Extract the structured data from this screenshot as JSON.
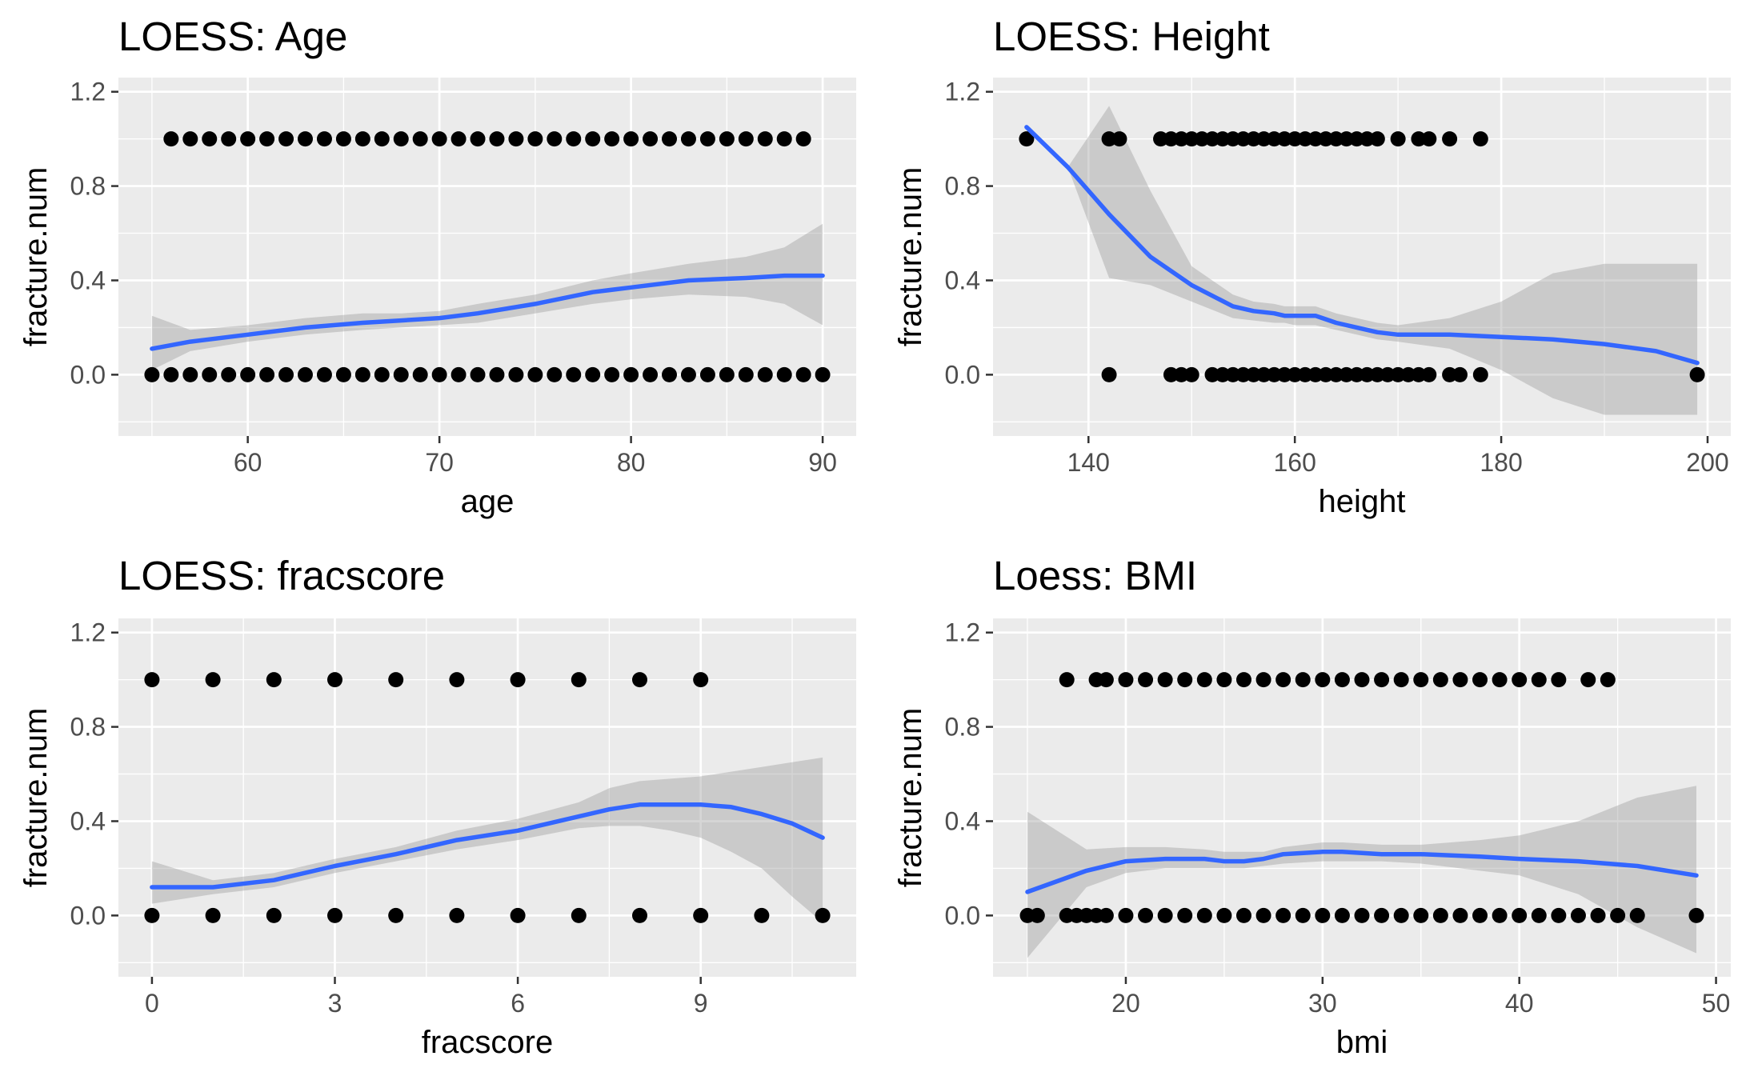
{
  "chart_data": [
    {
      "type": "scatter",
      "title": "LOESS: Age",
      "xlabel": "age",
      "ylabel": "fracture.num",
      "xlim": [
        53.25,
        91.75
      ],
      "ylim": [
        -0.26,
        1.26
      ],
      "xticks": [
        60,
        70,
        80,
        90
      ],
      "yticks": [
        0.0,
        0.4,
        0.8,
        1.2
      ],
      "ytick_labels": [
        "0.0",
        "0.4",
        "0.8",
        "1.2"
      ],
      "points": [
        {
          "x_values": [
            56,
            57,
            58,
            59,
            60,
            61,
            62,
            63,
            64,
            65,
            66,
            67,
            68,
            69,
            70,
            71,
            72,
            73,
            74,
            75,
            76,
            77,
            78,
            79,
            80,
            81,
            82,
            83,
            84,
            85,
            86,
            87,
            88,
            89
          ],
          "y": 1
        },
        {
          "x_values": [
            55,
            56,
            57,
            58,
            59,
            60,
            61,
            62,
            63,
            64,
            65,
            66,
            67,
            68,
            69,
            70,
            71,
            72,
            73,
            74,
            75,
            76,
            77,
            78,
            79,
            80,
            81,
            82,
            83,
            84,
            85,
            86,
            87,
            88,
            89,
            90
          ],
          "y": 0
        }
      ],
      "smooth": {
        "name": "loess",
        "x": [
          55,
          57,
          60,
          63,
          66,
          68,
          70,
          72,
          75,
          78,
          80,
          83,
          86,
          88,
          90
        ],
        "y": [
          0.11,
          0.14,
          0.17,
          0.2,
          0.22,
          0.23,
          0.24,
          0.26,
          0.3,
          0.35,
          0.37,
          0.4,
          0.41,
          0.42,
          0.42
        ],
        "lower": [
          0.02,
          0.1,
          0.14,
          0.17,
          0.19,
          0.2,
          0.21,
          0.22,
          0.26,
          0.3,
          0.32,
          0.34,
          0.33,
          0.3,
          0.21
        ],
        "upper": [
          0.25,
          0.19,
          0.21,
          0.24,
          0.26,
          0.26,
          0.27,
          0.3,
          0.34,
          0.4,
          0.43,
          0.47,
          0.5,
          0.54,
          0.64
        ]
      },
      "colors": {
        "panel": "#ebebeb",
        "grid": "#ffffff",
        "points": "#000000",
        "smooth": "#3366ff",
        "band": "#999999"
      }
    },
    {
      "type": "scatter",
      "title": "LOESS: Height",
      "xlabel": "height",
      "ylabel": "fracture.num",
      "xlim": [
        130.75,
        202.25
      ],
      "ylim": [
        -0.26,
        1.26
      ],
      "xticks": [
        140,
        160,
        180,
        200
      ],
      "yticks": [
        0.0,
        0.4,
        0.8,
        1.2
      ],
      "ytick_labels": [
        "0.0",
        "0.4",
        "0.8",
        "1.2"
      ],
      "points": [
        {
          "x_values": [
            134,
            142,
            143,
            147,
            148,
            149,
            150,
            151,
            152,
            153,
            154,
            155,
            156,
            157,
            158,
            159,
            160,
            161,
            162,
            163,
            164,
            165,
            166,
            167,
            168,
            170,
            172,
            173,
            175,
            178
          ],
          "y": 1
        },
        {
          "x_values": [
            142,
            148,
            149,
            150,
            152,
            153,
            154,
            155,
            156,
            157,
            158,
            159,
            160,
            161,
            162,
            163,
            164,
            165,
            166,
            167,
            168,
            169,
            170,
            171,
            172,
            173,
            175,
            176,
            178,
            199
          ],
          "y": 0
        }
      ],
      "smooth": {
        "name": "loess",
        "x": [
          134,
          138,
          142,
          146,
          150,
          154,
          156,
          158,
          159,
          160,
          162,
          164,
          166,
          168,
          170,
          175,
          180,
          185,
          190,
          195,
          199
        ],
        "y": [
          1.05,
          0.88,
          0.68,
          0.5,
          0.38,
          0.29,
          0.27,
          0.26,
          0.25,
          0.25,
          0.25,
          0.22,
          0.2,
          0.18,
          0.17,
          0.17,
          0.16,
          0.15,
          0.13,
          0.1,
          0.05
        ],
        "lower": [
          1.05,
          0.88,
          0.41,
          0.38,
          0.31,
          0.24,
          0.23,
          0.22,
          0.22,
          0.21,
          0.21,
          0.19,
          0.17,
          0.15,
          0.14,
          0.11,
          0.02,
          -0.1,
          -0.17,
          -0.17,
          -0.17
        ],
        "upper": [
          1.05,
          0.88,
          1.14,
          0.78,
          0.46,
          0.34,
          0.31,
          0.3,
          0.29,
          0.29,
          0.29,
          0.26,
          0.24,
          0.22,
          0.21,
          0.24,
          0.31,
          0.43,
          0.47,
          0.47,
          0.47
        ]
      },
      "colors": {
        "panel": "#ebebeb",
        "grid": "#ffffff",
        "points": "#000000",
        "smooth": "#3366ff",
        "band": "#999999"
      }
    },
    {
      "type": "scatter",
      "title": "LOESS: fracscore",
      "xlabel": "fracscore",
      "ylabel": "fracture.num",
      "xlim": [
        -0.55,
        11.55
      ],
      "ylim": [
        -0.26,
        1.26
      ],
      "xticks": [
        0,
        3,
        6,
        9
      ],
      "yticks": [
        0.0,
        0.4,
        0.8,
        1.2
      ],
      "ytick_labels": [
        "0.0",
        "0.4",
        "0.8",
        "1.2"
      ],
      "points": [
        {
          "x_values": [
            0,
            1,
            2,
            3,
            4,
            5,
            6,
            7,
            8,
            9
          ],
          "y": 1
        },
        {
          "x_values": [
            0,
            1,
            2,
            3,
            4,
            5,
            6,
            7,
            8,
            9,
            10,
            11
          ],
          "y": 0
        }
      ],
      "smooth": {
        "name": "loess",
        "x": [
          0,
          1,
          2,
          3,
          4,
          5,
          6,
          7,
          7.5,
          8,
          8.5,
          9,
          9.5,
          10,
          10.5,
          11
        ],
        "y": [
          0.12,
          0.12,
          0.15,
          0.21,
          0.26,
          0.32,
          0.36,
          0.42,
          0.45,
          0.47,
          0.47,
          0.47,
          0.46,
          0.43,
          0.39,
          0.33
        ],
        "lower": [
          0.05,
          0.09,
          0.12,
          0.18,
          0.23,
          0.28,
          0.32,
          0.37,
          0.38,
          0.38,
          0.36,
          0.33,
          0.27,
          0.2,
          0.08,
          -0.03
        ],
        "upper": [
          0.23,
          0.15,
          0.18,
          0.24,
          0.29,
          0.36,
          0.41,
          0.48,
          0.54,
          0.57,
          0.58,
          0.59,
          0.61,
          0.63,
          0.65,
          0.67
        ]
      },
      "colors": {
        "panel": "#ebebeb",
        "grid": "#ffffff",
        "points": "#000000",
        "smooth": "#3366ff",
        "band": "#999999"
      }
    },
    {
      "type": "scatter",
      "title": "Loess: BMI",
      "xlabel": "bmi",
      "ylabel": "fracture.num",
      "xlim": [
        13.25,
        50.75
      ],
      "ylim": [
        -0.26,
        1.26
      ],
      "xticks": [
        20,
        30,
        40,
        50
      ],
      "yticks": [
        0.0,
        0.4,
        0.8,
        1.2
      ],
      "ytick_labels": [
        "0.0",
        "0.4",
        "0.8",
        "1.2"
      ],
      "points": [
        {
          "x_values": [
            17,
            18.5,
            19,
            20,
            21,
            22,
            23,
            24,
            25,
            26,
            27,
            28,
            29,
            30,
            31,
            32,
            33,
            34,
            35,
            36,
            37,
            38,
            39,
            40,
            41,
            42,
            43.5,
            44.5
          ],
          "y": 1
        },
        {
          "x_values": [
            15,
            15.5,
            17,
            17.5,
            18,
            18.5,
            19,
            20,
            21,
            22,
            23,
            24,
            25,
            26,
            27,
            28,
            29,
            30,
            31,
            32,
            33,
            34,
            35,
            36,
            37,
            38,
            39,
            40,
            41,
            42,
            43,
            44,
            45,
            46,
            49
          ],
          "y": 0
        }
      ],
      "smooth": {
        "name": "loess",
        "x": [
          15,
          18,
          20,
          22,
          24,
          25,
          26,
          27,
          28,
          30,
          31,
          33,
          35,
          38,
          40,
          43,
          46,
          49
        ],
        "y": [
          0.1,
          0.19,
          0.23,
          0.24,
          0.24,
          0.23,
          0.23,
          0.24,
          0.26,
          0.27,
          0.27,
          0.26,
          0.26,
          0.25,
          0.24,
          0.23,
          0.21,
          0.17
        ],
        "lower": [
          -0.18,
          0.12,
          0.18,
          0.2,
          0.2,
          0.2,
          0.2,
          0.21,
          0.22,
          0.23,
          0.23,
          0.23,
          0.22,
          0.19,
          0.17,
          0.09,
          -0.05,
          -0.16
        ],
        "upper": [
          0.44,
          0.28,
          0.29,
          0.29,
          0.28,
          0.27,
          0.27,
          0.27,
          0.29,
          0.31,
          0.31,
          0.3,
          0.3,
          0.32,
          0.34,
          0.4,
          0.5,
          0.55
        ]
      },
      "colors": {
        "panel": "#ebebeb",
        "grid": "#ffffff",
        "points": "#000000",
        "smooth": "#3366ff",
        "band": "#999999"
      }
    }
  ]
}
